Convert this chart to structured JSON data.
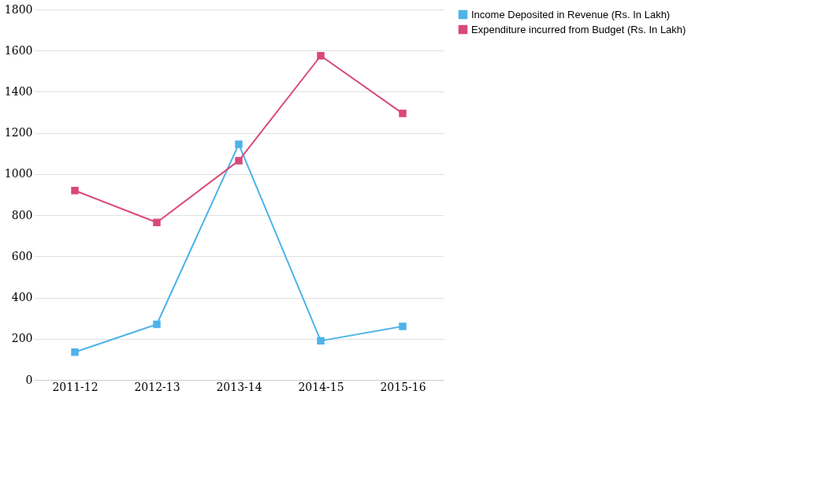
{
  "chart_data": {
    "type": "line",
    "categories": [
      "2011-12",
      "2012-13",
      "2013-14",
      "2014-15",
      "2015-16"
    ],
    "series": [
      {
        "name": "Income Deposited in Revenue  (Rs. In Lakh)",
        "color": "#4fb3e8",
        "values": [
          135,
          270,
          1145,
          190,
          260
        ]
      },
      {
        "name": "Expenditure incurred from Budget  (Rs. In Lakh)",
        "color": "#d9487a",
        "values": [
          920,
          765,
          1065,
          1575,
          1295
        ]
      }
    ],
    "ylim": [
      0,
      1800
    ],
    "yticks": [
      0,
      200,
      400,
      600,
      800,
      1000,
      1200,
      1400,
      1600,
      1800
    ],
    "grid": "y",
    "legend": "right",
    "marker": "square",
    "line_style": "solid"
  }
}
